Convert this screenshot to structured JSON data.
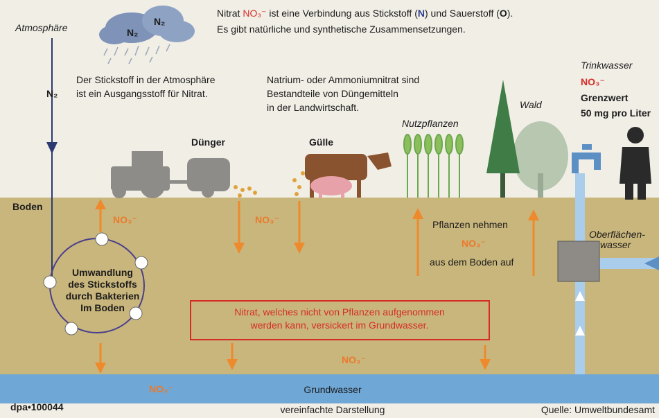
{
  "atmosphere": {
    "label": "Atmosphäre",
    "cloud_labels": [
      "N₂",
      "N₂"
    ],
    "arrow_label": "N₂"
  },
  "intro": {
    "line1": [
      "Nitrat ",
      "NO₃⁻",
      " ist eine Verbindung aus Stickstoff (",
      "N",
      ") und Sauerstoff (",
      "O",
      ")."
    ],
    "line2": "Es gibt natürliche und synthetische Zusammensetzungen."
  },
  "nitrogen_note": [
    "Der Stickstoff in der Atmosphäre",
    "ist ein Ausgangsstoff für Nitrat."
  ],
  "fertilizer_note": [
    "Natrium- oder Ammoniumnitrat sind",
    "Bestandteile von Düngemitteln",
    "in der Landwirtschaft."
  ],
  "drinking_water": {
    "title": "Trinkwasser",
    "formula": "NO₃⁻",
    "limit_label": "Grenzwert",
    "limit": "50 mg pro Liter"
  },
  "labels": {
    "wald": "Wald",
    "nutzpflanzen": "Nutzpflanzen",
    "duenger": "Dünger",
    "guelle": "Gülle",
    "boden": "Boden",
    "grundwasser": "Grundwasser",
    "oberflaechenwasser": [
      "Oberflächen-",
      "wasser"
    ]
  },
  "nitrate_labels": [
    "NO₃⁻",
    "NO₃⁻",
    "NO₃⁻",
    "NO₃⁻"
  ],
  "cycle": [
    "Umwandlung",
    "des Stickstoffs",
    "durch Bakterien",
    "Im Boden"
  ],
  "plants_uptake": [
    "Pflanzen nehmen",
    "NO₃⁻",
    "aus dem Boden auf"
  ],
  "leaching_box": [
    "Nitrat, welches nicht von Pflanzen aufgenommen",
    "werden kann, versickert im Grundwasser."
  ],
  "footer": {
    "id": "dpa•100044",
    "note": "vereinfachte Darstellung",
    "source": "Quelle: Umweltbundesamt"
  }
}
